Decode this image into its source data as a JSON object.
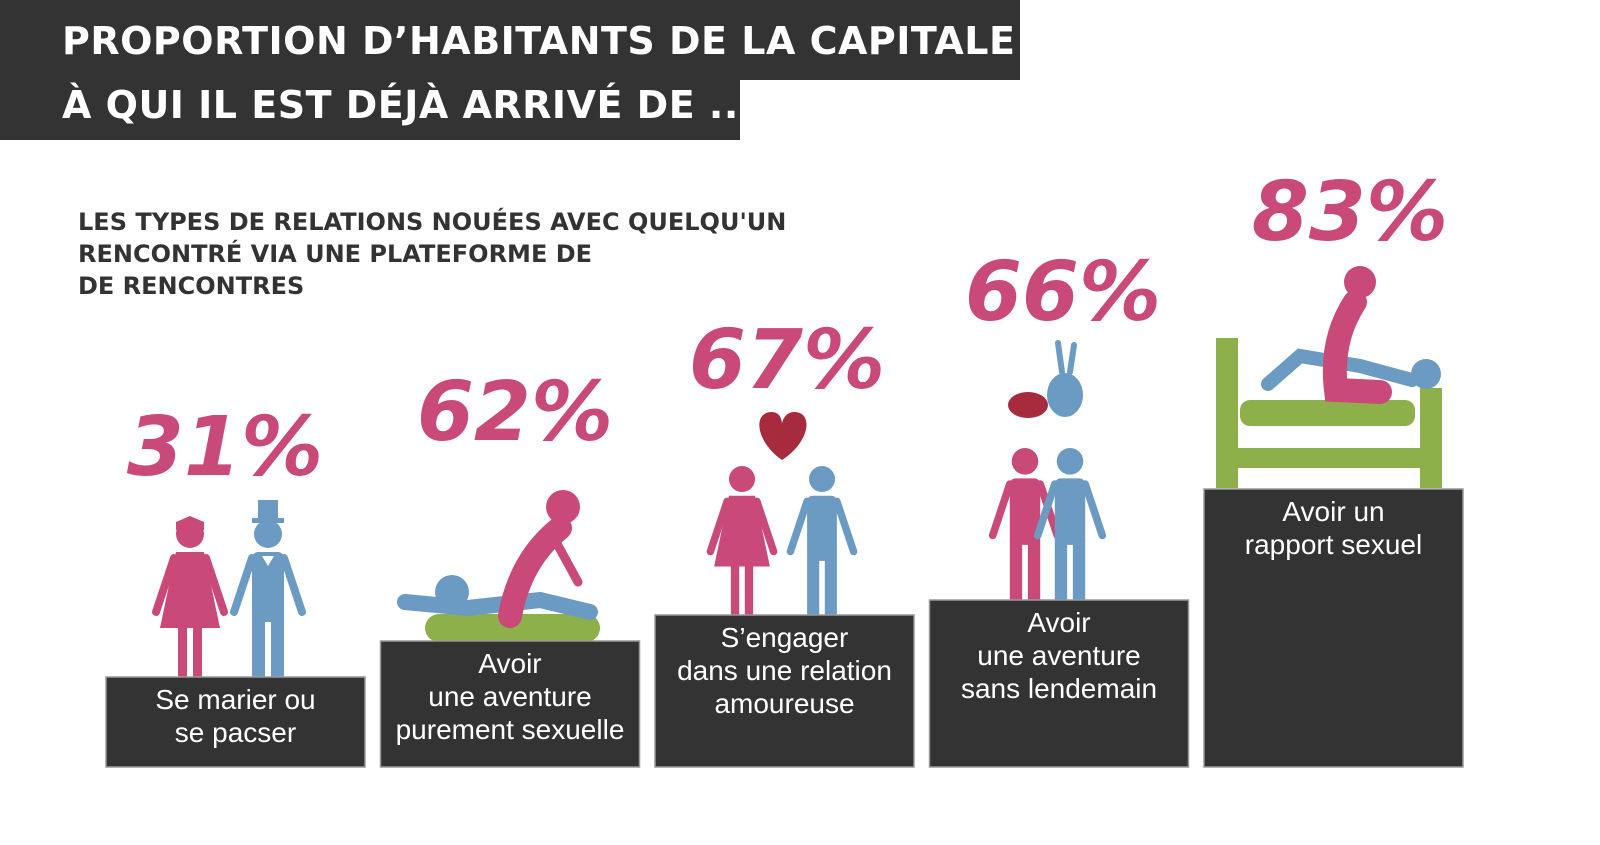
{
  "header": {
    "title_line1": "PROPORTION D’HABITANTS DE LA CAPITALE",
    "title_line2": "À QUI IL EST DÉJÀ ARRIVÉ DE ..."
  },
  "subtitle_lines": [
    "LES TYPES DE RELATIONS NOUÉES AVEC QUELQU'UN",
    "RENCONTRÉ VIA UNE PLATEFORME DE",
    "DE RENCONTRES"
  ],
  "colors": {
    "dark": "#333333",
    "pink": "#c94a78",
    "blue": "#6b9bc3",
    "green": "#8db04a",
    "heart": "#a82a3d",
    "white": "#ffffff"
  },
  "chart_data": {
    "type": "bar",
    "unit": "%",
    "categories": [
      [
        "Se marier ou",
        "se pacser"
      ],
      [
        "Avoir",
        "une aventure",
        "purement sexuelle"
      ],
      [
        "S’engager",
        "dans une relation",
        "amoureuse"
      ],
      [
        "Avoir",
        "une aventure",
        "sans lendemain"
      ],
      [
        "Avoir un",
        "rapport sexuel"
      ]
    ],
    "values": [
      31,
      62,
      67,
      66,
      83
    ],
    "value_labels": [
      "31%",
      "62%",
      "67%",
      "66%",
      "83%"
    ],
    "icons": [
      "wedding-couple-icon",
      "couple-on-mat-icon",
      "couple-holding-hands-heart-icon",
      "hugging-couple-rabbits-icon",
      "couple-in-bed-icon"
    ]
  }
}
